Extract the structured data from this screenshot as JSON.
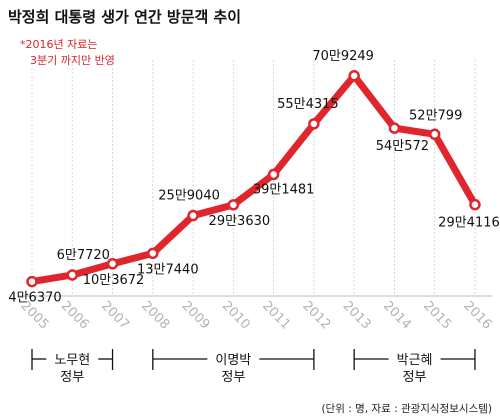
{
  "chart_data": {
    "type": "line",
    "title": "박정희 대통령 생가 연간 방문객 추이",
    "note": [
      "*2016년 자료는",
      "3분기 까지만 반영"
    ],
    "source": "(단위 : 명, 자료 : 관광지식정보시스템)",
    "x": [
      "2005",
      "2006",
      "2007",
      "2008",
      "2009",
      "2010",
      "2011",
      "2012",
      "2013",
      "2014",
      "2015",
      "2016"
    ],
    "values": [
      46370,
      67720,
      103672,
      137440,
      259040,
      293630,
      391481,
      554315,
      709249,
      540572,
      520799,
      294116
    ],
    "data_labels": [
      "4만6370",
      "6만7720",
      "10만3672",
      "13만7440",
      "25만9040",
      "29만3630",
      "39만1481",
      "55만4315",
      "70만9249",
      "54만572",
      "52만799",
      "29만4116"
    ],
    "ylim": [
      0,
      760000
    ],
    "grid": "vertical-dashed",
    "line_color": "#e0262d",
    "marker_fill": "#ffffff",
    "periods": [
      {
        "label_line1": "노무현",
        "label_line2": "정부",
        "start": "2005",
        "end": "2007"
      },
      {
        "label_line1": "이명박",
        "label_line2": "정부",
        "start": "2008",
        "end": "2012"
      },
      {
        "label_line1": "박근혜",
        "label_line2": "정부",
        "start": "2013",
        "end": "2016"
      }
    ]
  }
}
